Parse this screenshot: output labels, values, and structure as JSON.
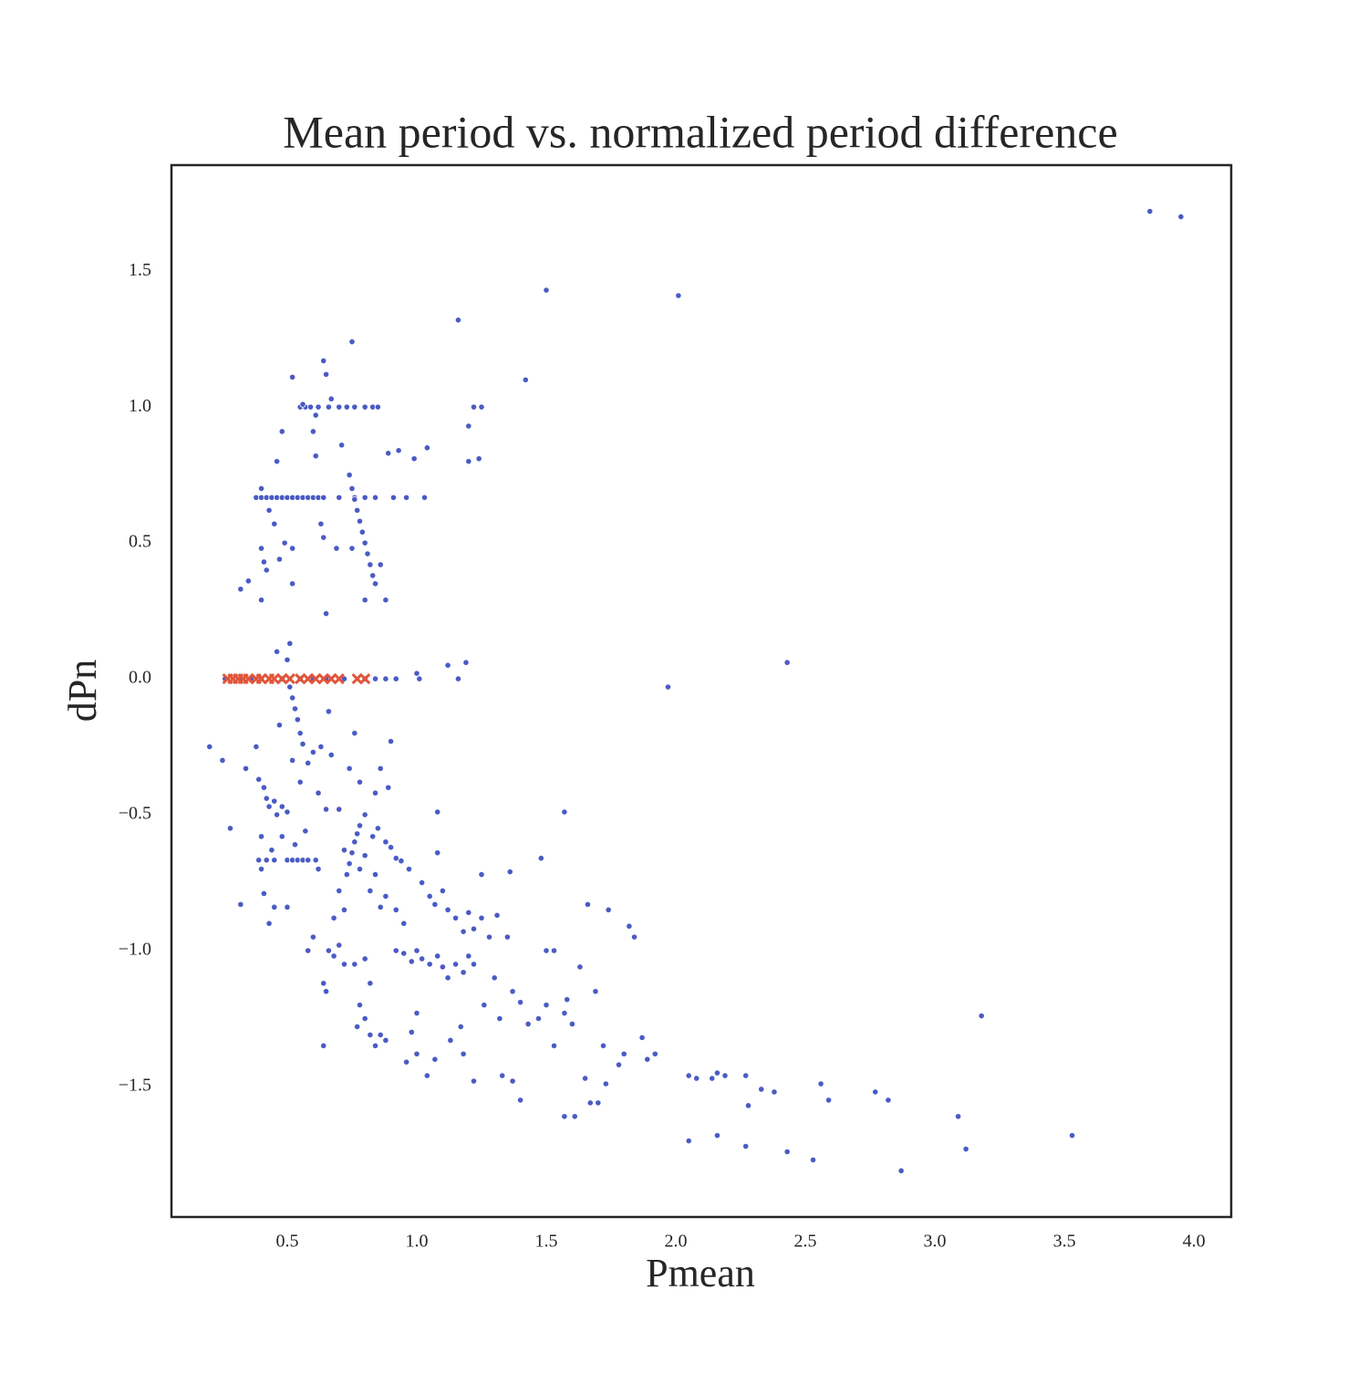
{
  "chart_data": {
    "type": "scatter",
    "title": "Mean period vs. normalized period difference",
    "x_label": "Pmean",
    "y_label": "dPn",
    "xlim": [
      0.053,
      4.144
    ],
    "ylim": [
      -1.98,
      1.89
    ],
    "xticks": [
      0.5,
      {
        "value": 1.0,
        "label": "1.0"
      },
      1.5,
      {
        "value": 2.0,
        "label": "2.0"
      },
      2.5,
      {
        "value": 3.0,
        "label": "3.0"
      },
      3.5,
      {
        "value": 4.0,
        "label": "4.0"
      }
    ],
    "yticks": [
      {
        "value": -1.5,
        "label": "−1.5"
      },
      {
        "value": -1.0,
        "label": "−1.0"
      },
      {
        "value": -0.5,
        "label": "−0.5"
      },
      {
        "value": 0.0,
        "label": "0.0"
      },
      0.5,
      {
        "value": 1.0,
        "label": "1.0"
      },
      1.5
    ],
    "grid": false,
    "series": [
      {
        "color": "#4a5bc4",
        "marker": "circle",
        "x": [
          3.83,
          3.95,
          1.5,
          2.01,
          1.16,
          1.42,
          0.75,
          0.64,
          0.65,
          0.52,
          0.55,
          0.57,
          0.59,
          0.62,
          0.66,
          0.7,
          0.73,
          0.76,
          0.8,
          0.83,
          0.85,
          0.56,
          0.67,
          0.61,
          1.22,
          1.25,
          1.2,
          0.48,
          0.6,
          0.71,
          0.93,
          1.04,
          0.99,
          1.2,
          1.24,
          0.46,
          0.61,
          0.89,
          0.38,
          0.4,
          0.42,
          0.44,
          0.46,
          0.48,
          0.5,
          0.52,
          0.54,
          0.56,
          0.58,
          0.6,
          0.62,
          0.64,
          0.7,
          0.76,
          0.8,
          0.84,
          0.91,
          0.96,
          1.03,
          0.74,
          0.75,
          0.76,
          0.77,
          0.78,
          0.79,
          0.8,
          0.81,
          0.82,
          0.83,
          0.84,
          0.4,
          0.43,
          0.45,
          0.4,
          0.41,
          0.42,
          0.47,
          0.49,
          0.52,
          0.52,
          0.35,
          0.32,
          0.4,
          0.8,
          0.88,
          0.64,
          0.69,
          0.63,
          0.75,
          0.86,
          0.65,
          0.51,
          0.46,
          0.5,
          1.12,
          1.19,
          2.43,
          1.97,
          1.0,
          1.16,
          0.26,
          0.32,
          0.36,
          0.4,
          0.48,
          0.55,
          0.6,
          0.65,
          0.72,
          0.8,
          0.84,
          0.88,
          0.92,
          1.01,
          0.51,
          0.52,
          0.53,
          0.54,
          0.55,
          0.56,
          0.2,
          0.25,
          0.28,
          0.32,
          0.34,
          0.38,
          0.39,
          0.41,
          0.42,
          0.43,
          0.45,
          0.46,
          0.48,
          0.5,
          0.47,
          0.52,
          0.55,
          0.58,
          0.6,
          0.63,
          0.66,
          0.67,
          0.62,
          0.65,
          0.7,
          0.74,
          0.76,
          0.78,
          0.8,
          0.84,
          0.89,
          0.9,
          0.86,
          0.39,
          0.42,
          0.45,
          0.5,
          0.52,
          0.54,
          0.56,
          0.58,
          0.61,
          0.4,
          0.44,
          0.48,
          0.53,
          0.57,
          0.62,
          0.4,
          0.41,
          0.43,
          0.45,
          0.5,
          0.73,
          0.74,
          0.75,
          0.76,
          0.77,
          0.78,
          0.72,
          0.8,
          0.83,
          0.85,
          0.88,
          0.9,
          0.92,
          0.84,
          0.88,
          0.94,
          0.97,
          0.86,
          0.92,
          0.95,
          0.82,
          0.78,
          0.7,
          0.68,
          0.72,
          0.58,
          0.6,
          0.66,
          0.64,
          0.65,
          0.68,
          0.7,
          0.72,
          0.76,
          0.78,
          0.8,
          0.82,
          0.8,
          0.77,
          0.82,
          0.84,
          0.86,
          0.88,
          0.64,
          0.92,
          0.95,
          0.98,
          1.0,
          1.02,
          1.05,
          1.08,
          1.1,
          1.12,
          1.15,
          1.18,
          1.2,
          1.22,
          1.02,
          1.05,
          1.07,
          1.1,
          1.12,
          1.15,
          1.18,
          1.2,
          1.22,
          1.25,
          1.28,
          1.31,
          1.35,
          1.25,
          1.08,
          1.08,
          1.36,
          1.48,
          1.57,
          1.66,
          1.74,
          1.82,
          1.84,
          1.0,
          0.98,
          0.96,
          1.0,
          1.04,
          1.07,
          1.13,
          1.17,
          1.18,
          1.22,
          1.26,
          1.3,
          1.32,
          1.37,
          1.4,
          1.43,
          1.47,
          1.5,
          1.53,
          1.57,
          1.6,
          1.5,
          1.53,
          1.58,
          1.63,
          1.69,
          1.4,
          1.33,
          1.37,
          1.57,
          1.61,
          1.65,
          1.67,
          1.7,
          1.72,
          1.73,
          1.78,
          1.8,
          1.87,
          1.89,
          1.92,
          2.05,
          2.05,
          2.08,
          2.14,
          2.16,
          2.16,
          2.19,
          2.27,
          2.28,
          2.27,
          2.33,
          2.38,
          2.43,
          2.53,
          2.56,
          2.59,
          2.77,
          2.82,
          2.87,
          3.09,
          3.12,
          3.18,
          3.53
        ],
        "y": [
          1.72,
          1.7,
          1.43,
          1.41,
          1.32,
          1.1,
          1.24,
          1.17,
          1.12,
          1.11,
          1.0,
          1.0,
          1.0,
          1.0,
          1.0,
          1.0,
          1.0,
          1.0,
          1.0,
          1.0,
          1.0,
          1.01,
          1.03,
          0.97,
          1.0,
          1.0,
          0.93,
          0.91,
          0.91,
          0.86,
          0.84,
          0.85,
          0.81,
          0.8,
          0.81,
          0.8,
          0.82,
          0.83,
          0.667,
          0.667,
          0.667,
          0.667,
          0.667,
          0.667,
          0.667,
          0.667,
          0.667,
          0.667,
          0.667,
          0.667,
          0.667,
          0.667,
          0.667,
          0.667,
          0.667,
          0.667,
          0.667,
          0.667,
          0.667,
          0.75,
          0.7,
          0.66,
          0.62,
          0.58,
          0.54,
          0.5,
          0.46,
          0.42,
          0.38,
          0.35,
          0.7,
          0.62,
          0.57,
          0.48,
          0.43,
          0.4,
          0.44,
          0.5,
          0.48,
          0.35,
          0.36,
          0.33,
          0.29,
          0.29,
          0.29,
          0.52,
          0.48,
          0.57,
          0.48,
          0.42,
          0.24,
          0.13,
          0.1,
          0.07,
          0.05,
          0.06,
          0.06,
          -0.03,
          0.02,
          0.0,
          0,
          0,
          0,
          0,
          0,
          0,
          0,
          0,
          0,
          0,
          0,
          0,
          0,
          0,
          -0.03,
          -0.07,
          -0.11,
          -0.15,
          -0.2,
          -0.24,
          -0.25,
          -0.3,
          -0.55,
          -0.83,
          -0.33,
          -0.25,
          -0.37,
          -0.4,
          -0.44,
          -0.47,
          -0.45,
          -0.5,
          -0.47,
          -0.49,
          -0.17,
          -0.3,
          -0.38,
          -0.31,
          -0.27,
          -0.25,
          -0.12,
          -0.28,
          -0.42,
          -0.48,
          -0.48,
          -0.33,
          -0.2,
          -0.38,
          -0.5,
          -0.42,
          -0.4,
          -0.23,
          -0.33,
          -0.667,
          -0.667,
          -0.667,
          -0.667,
          -0.667,
          -0.667,
          -0.667,
          -0.667,
          -0.667,
          -0.58,
          -0.63,
          -0.58,
          -0.61,
          -0.56,
          -0.7,
          -0.7,
          -0.79,
          -0.9,
          -0.84,
          -0.84,
          -0.72,
          -0.68,
          -0.64,
          -0.6,
          -0.57,
          -0.54,
          -0.63,
          -0.65,
          -0.58,
          -0.55,
          -0.6,
          -0.62,
          -0.66,
          -0.72,
          -0.8,
          -0.67,
          -0.7,
          -0.84,
          -0.85,
          -0.9,
          -0.78,
          -0.7,
          -0.78,
          -0.88,
          -0.85,
          -1.0,
          -0.95,
          -1.0,
          -1.12,
          -1.15,
          -1.02,
          -0.98,
          -1.05,
          -1.05,
          -1.2,
          -1.03,
          -1.12,
          -1.25,
          -1.28,
          -1.31,
          -1.35,
          -1.31,
          -1.33,
          -1.35,
          -1.0,
          -1.01,
          -1.04,
          -1.0,
          -1.03,
          -1.05,
          -1.02,
          -1.06,
          -1.1,
          -1.05,
          -1.08,
          -1.02,
          -1.05,
          -0.75,
          -0.8,
          -0.83,
          -0.78,
          -0.85,
          -0.88,
          -0.93,
          -0.86,
          -0.92,
          -0.88,
          -0.95,
          -0.87,
          -0.95,
          -0.72,
          -0.64,
          -0.49,
          -0.71,
          -0.66,
          -0.49,
          -0.83,
          -0.85,
          -0.91,
          -0.95,
          -1.23,
          -1.3,
          -1.41,
          -1.38,
          -1.46,
          -1.4,
          -1.33,
          -1.28,
          -1.38,
          -1.48,
          -1.2,
          -1.1,
          -1.25,
          -1.15,
          -1.19,
          -1.27,
          -1.25,
          -1.2,
          -1.35,
          -1.23,
          -1.27,
          -1.0,
          -1.0,
          -1.18,
          -1.06,
          -1.15,
          -1.55,
          -1.46,
          -1.48,
          -1.61,
          -1.61,
          -1.47,
          -1.56,
          -1.56,
          -1.35,
          -1.49,
          -1.42,
          -1.38,
          -1.32,
          -1.4,
          -1.38,
          -1.46,
          -1.7,
          -1.47,
          -1.47,
          -1.45,
          -1.68,
          -1.46,
          -1.46,
          -1.57,
          -1.72,
          -1.51,
          -1.52,
          -1.74,
          -1.77,
          -1.49,
          -1.55,
          -1.52,
          -1.55,
          -1.81,
          -1.61,
          -1.73,
          -1.24,
          -1.68
        ]
      },
      {
        "color": "#e2553a",
        "marker": "x",
        "x": [
          0.27,
          0.29,
          0.31,
          0.33,
          0.35,
          0.38,
          0.4,
          0.43,
          0.45,
          0.48,
          0.51,
          0.55,
          0.58,
          0.61,
          0.64,
          0.67,
          0.7,
          0.77,
          0.8
        ],
        "y": [
          0,
          0,
          0,
          0,
          0,
          0,
          0,
          0,
          0,
          0,
          0,
          0,
          0,
          0,
          0,
          0,
          0,
          0,
          0
        ]
      }
    ]
  }
}
